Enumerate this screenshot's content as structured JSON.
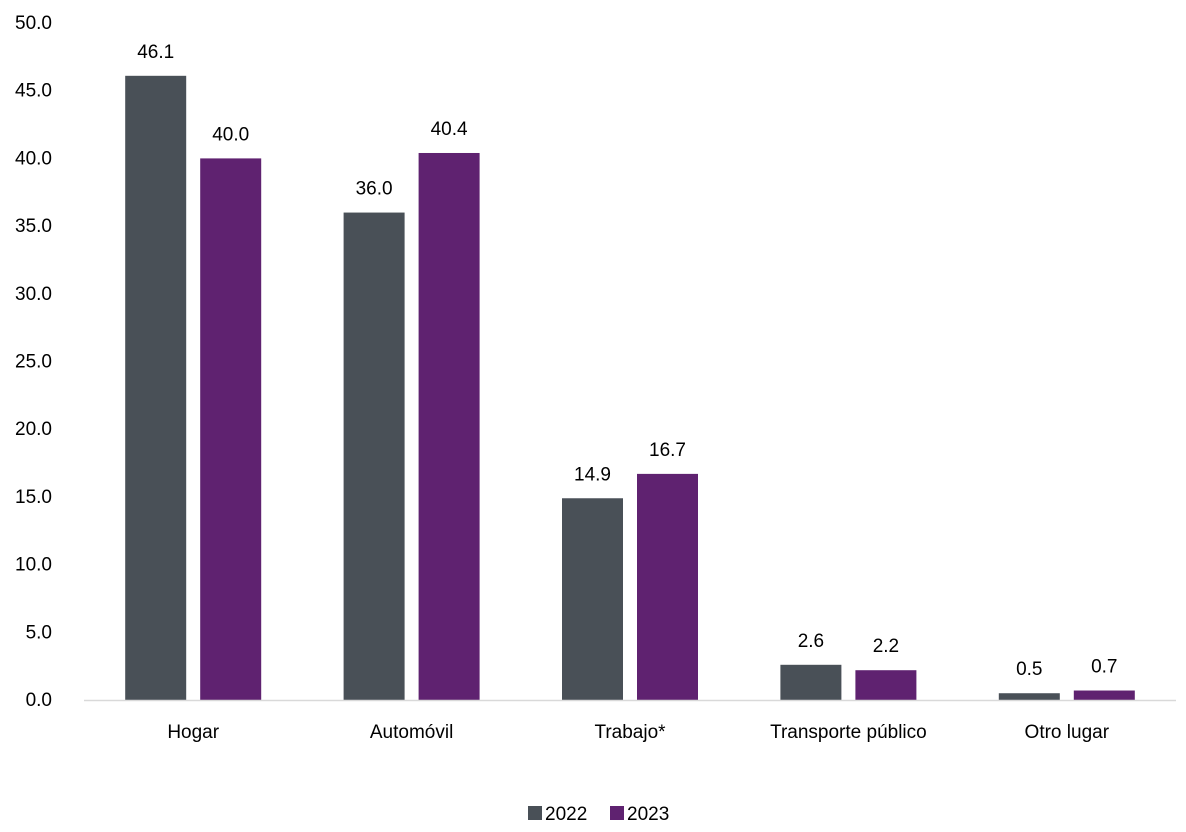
{
  "chart_data": {
    "type": "bar",
    "categories": [
      "Hogar",
      "Automóvil",
      "Trabajo*",
      "Transporte público",
      "Otro lugar"
    ],
    "series": [
      {
        "name": "2022",
        "values": [
          46.1,
          36.0,
          14.9,
          2.6,
          0.5
        ],
        "labels": [
          "46.1",
          "36.0",
          "14.9",
          "2.6",
          "0.5"
        ],
        "color": "#495057"
      },
      {
        "name": "2023",
        "values": [
          40.0,
          40.4,
          16.7,
          2.2,
          0.7
        ],
        "labels": [
          "40.0",
          "40.4",
          "16.7",
          "2.2",
          "0.7"
        ],
        "color": "#5f2270"
      }
    ],
    "ylim": [
      0,
      50
    ],
    "yticks": [
      "0.0",
      "5.0",
      "10.0",
      "15.0",
      "20.0",
      "25.0",
      "30.0",
      "35.0",
      "40.0",
      "45.0",
      "50.0"
    ],
    "grid": false,
    "legend_position": "bottom",
    "title": "",
    "xlabel": "",
    "ylabel": ""
  }
}
